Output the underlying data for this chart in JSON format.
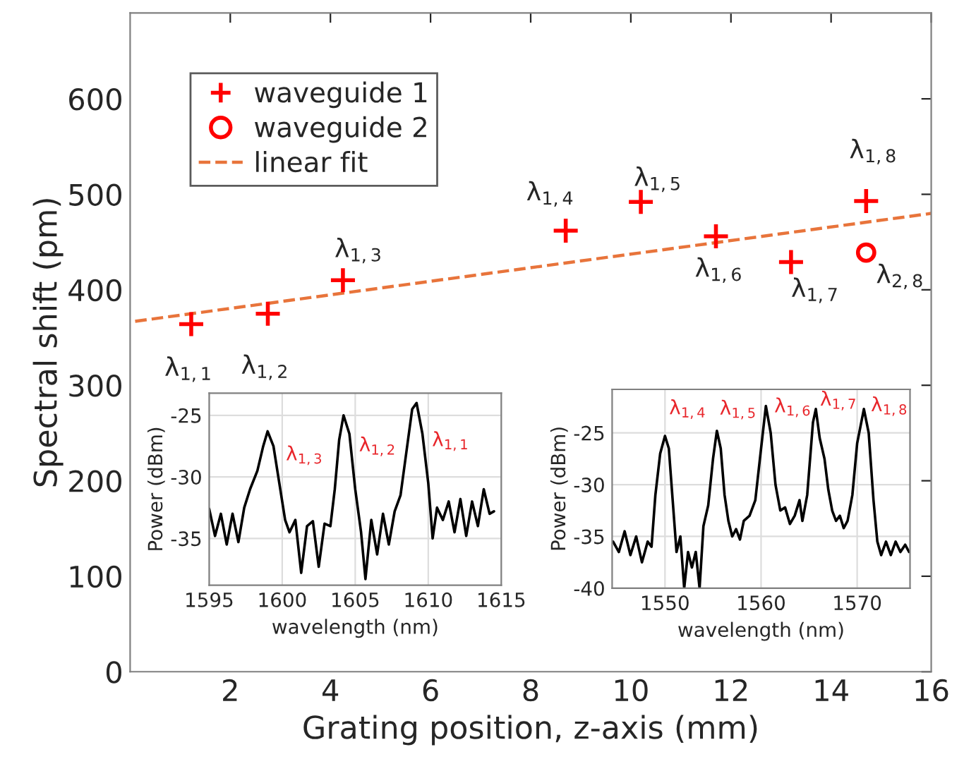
{
  "chart_data": [
    {
      "type": "scatter",
      "xlabel": "Grating position, z-axis (mm)",
      "ylabel": "Spectral shift (pm)",
      "xlim": [
        0,
        16
      ],
      "ylim": [
        0,
        690
      ],
      "xticks": [
        2,
        4,
        6,
        8,
        10,
        12,
        14,
        16
      ],
      "yticks": [
        0,
        100,
        200,
        300,
        400,
        500,
        600
      ],
      "legend": "top left",
      "grid": false,
      "series": [
        {
          "name": "waveguide 1",
          "color": "#ff0000",
          "marker": "cross",
          "x": [
            1.22,
            2.75,
            4.25,
            8.7,
            10.2,
            11.7,
            13.2,
            14.7
          ],
          "values": [
            364,
            375,
            410,
            462,
            492,
            456,
            429,
            493
          ]
        },
        {
          "name": "waveguide 2",
          "color": "#ff0000",
          "marker": "circle",
          "x": [
            14.7
          ],
          "values": [
            439
          ]
        },
        {
          "name": "linear fit",
          "type": "line",
          "color": "#e8743b",
          "line_style": "dashed",
          "x": [
            0.1,
            16
          ],
          "values": [
            367,
            480
          ]
        }
      ],
      "annotations": [
        {
          "text": "λ$_{1,1}$",
          "x": 1.22,
          "y": 364
        },
        {
          "text": "λ$_{1,2}$",
          "x": 2.75,
          "y": 375
        },
        {
          "text": "λ$_{1,3}$",
          "x": 4.25,
          "y": 410
        },
        {
          "text": "λ$_{1,4}$",
          "x": 8.7,
          "y": 462
        },
        {
          "text": "λ$_{1,5}$",
          "x": 10.2,
          "y": 492
        },
        {
          "text": "λ$_{1,6}$",
          "x": 11.7,
          "y": 456
        },
        {
          "text": "λ$_{1,7}$",
          "x": 13.2,
          "y": 429
        },
        {
          "text": "λ$_{1,8}$",
          "x": 14.7,
          "y": 493
        },
        {
          "text": "λ$_{2,8}$",
          "x": 14.7,
          "y": 439
        }
      ]
    },
    {
      "type": "line",
      "xlabel": "wavelength (nm)",
      "ylabel": "Power (dBm)",
      "xlim": [
        1595,
        1615
      ],
      "ylim": [
        -38.8,
        -23.2
      ],
      "xticks": [
        1595,
        1600,
        1605,
        1610,
        1615
      ],
      "yticks": [
        -35,
        -30,
        -25
      ],
      "grid": true,
      "series": [
        {
          "color": "#000000",
          "x": [
            1595.0,
            1595.4,
            1595.8,
            1596.2,
            1596.6,
            1597.0,
            1597.4,
            1597.8,
            1598.3,
            1598.7,
            1599.0,
            1599.4,
            1599.8,
            1600.2,
            1600.5,
            1600.9,
            1601.3,
            1601.7,
            1602.1,
            1602.5,
            1602.9,
            1603.3,
            1603.6,
            1603.9,
            1604.2,
            1604.6,
            1605.0,
            1605.4,
            1605.7,
            1606.1,
            1606.5,
            1606.9,
            1607.3,
            1607.7,
            1608.1,
            1608.5,
            1608.9,
            1609.2,
            1609.6,
            1610.0,
            1610.3,
            1610.6,
            1611.0,
            1611.4,
            1611.8,
            1612.2,
            1612.6,
            1613.0,
            1613.4,
            1613.8,
            1614.2,
            1614.5
          ],
          "values": [
            -32.6,
            -34.8,
            -33.0,
            -35.5,
            -33.0,
            -35.3,
            -32.5,
            -31.0,
            -29.5,
            -27.5,
            -26.3,
            -27.5,
            -30.5,
            -33.5,
            -34.5,
            -33.5,
            -37.8,
            -34.0,
            -33.6,
            -37.3,
            -33.8,
            -34.0,
            -31.0,
            -27.0,
            -25.0,
            -26.5,
            -31.0,
            -34.5,
            -38.3,
            -33.5,
            -36.3,
            -33.0,
            -35.5,
            -32.8,
            -31.5,
            -28.0,
            -24.5,
            -24.0,
            -26.5,
            -30.5,
            -35.0,
            -32.5,
            -33.5,
            -32.0,
            -34.5,
            -31.8,
            -34.8,
            -32.0,
            -34.0,
            -31.0,
            -33.0,
            -32.8
          ]
        }
      ],
      "annotations": [
        {
          "text": "λ$_{1,3}$",
          "x": 1599.0,
          "y": -26.3
        },
        {
          "text": "λ$_{1,2}$",
          "x": 1604.2,
          "y": -25.0
        },
        {
          "text": "λ$_{1,1}$",
          "x": 1609.2,
          "y": -24.0
        }
      ]
    },
    {
      "type": "line",
      "xlabel": "wavelength (nm)",
      "ylabel": "Power (dBm)",
      "xlim": [
        1544.5,
        1575.5
      ],
      "ylim": [
        -40,
        -20.8
      ],
      "xticks": [
        1550,
        1560,
        1570
      ],
      "yticks": [
        -40,
        -35,
        -30,
        -25
      ],
      "grid": true,
      "series": [
        {
          "color": "#000000",
          "x": [
            1544.6,
            1545.2,
            1545.8,
            1546.4,
            1547.0,
            1547.6,
            1548.2,
            1548.6,
            1549.0,
            1549.5,
            1550.0,
            1550.4,
            1550.8,
            1551.2,
            1551.6,
            1552.0,
            1552.4,
            1552.8,
            1553.2,
            1553.6,
            1554.0,
            1554.5,
            1555.0,
            1555.4,
            1555.8,
            1556.2,
            1556.6,
            1557.0,
            1557.4,
            1557.8,
            1558.2,
            1558.8,
            1559.4,
            1560.0,
            1560.5,
            1561.0,
            1561.5,
            1562.0,
            1562.5,
            1563.0,
            1563.5,
            1564.0,
            1564.3,
            1564.8,
            1565.4,
            1565.7,
            1566.1,
            1566.6,
            1567.0,
            1567.4,
            1567.8,
            1568.2,
            1568.6,
            1569.0,
            1569.5,
            1570.0,
            1570.7,
            1571.2,
            1571.7,
            1572.1,
            1572.5,
            1573.0,
            1573.5,
            1574.0,
            1574.5,
            1575.0,
            1575.4
          ],
          "values": [
            -35.5,
            -36.5,
            -34.5,
            -36.8,
            -35.0,
            -37.5,
            -35.5,
            -36.0,
            -31.0,
            -27.0,
            -25.3,
            -26.5,
            -31.5,
            -36.5,
            -35.0,
            -40.0,
            -36.5,
            -38.0,
            -36.5,
            -40.0,
            -34.0,
            -32.0,
            -27.5,
            -24.8,
            -26.5,
            -31.0,
            -33.5,
            -35.0,
            -34.3,
            -35.3,
            -33.5,
            -33.0,
            -31.5,
            -26.5,
            -22.4,
            -25.0,
            -30.0,
            -32.5,
            -32.2,
            -33.8,
            -33.0,
            -31.5,
            -33.5,
            -31.0,
            -24.0,
            -22.7,
            -25.5,
            -27.5,
            -30.5,
            -32.5,
            -33.5,
            -33.0,
            -34.2,
            -33.5,
            -31.0,
            -26.0,
            -22.7,
            -25.0,
            -31.5,
            -35.5,
            -36.8,
            -35.5,
            -36.8,
            -35.5,
            -36.5,
            -35.8,
            -36.5
          ]
        }
      ],
      "annotations": [
        {
          "text": "λ$_{1,4}$",
          "x": 1550.0,
          "y": -25.3
        },
        {
          "text": "λ$_{1,5}$",
          "x": 1555.4,
          "y": -24.8
        },
        {
          "text": "λ$_{1,6}$",
          "x": 1560.5,
          "y": -22.4
        },
        {
          "text": "λ$_{1,7}$",
          "x": 1565.7,
          "y": -22.7
        },
        {
          "text": "λ$_{1,8}$",
          "x": 1570.7,
          "y": -22.7
        }
      ]
    }
  ]
}
